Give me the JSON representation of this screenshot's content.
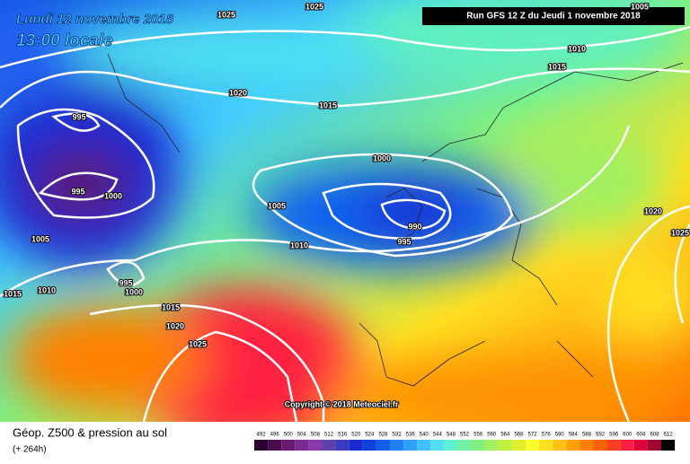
{
  "header": {
    "date": "Lundi 12 novembre 2018",
    "time": "13:00 locale",
    "run": "Run GFS 12 Z du Jeudi 1 novembre 2018"
  },
  "isobars": [
    1025,
    1025,
    1005,
    1010,
    1015,
    1020,
    1015,
    995,
    995,
    1000,
    1000,
    1005,
    990,
    995,
    1010,
    1005,
    1015,
    1010,
    995,
    1000,
    1015,
    1020,
    1025,
    1020,
    1025
  ],
  "copyright": "Copyright © 2018 Meteociel.fr",
  "legend": {
    "title": "Géop. Z500 & pression au sol",
    "lead": "(+ 264h)",
    "scale": [
      {
        "value": 492,
        "color": "#2a0030"
      },
      {
        "value": 496,
        "color": "#4a0a50"
      },
      {
        "value": 500,
        "color": "#6a1a70"
      },
      {
        "value": 504,
        "color": "#7a2a90"
      },
      {
        "value": 508,
        "color": "#8a3aa8"
      },
      {
        "value": 512,
        "color": "#6040b0"
      },
      {
        "value": 516,
        "color": "#3a3ac0"
      },
      {
        "value": 520,
        "color": "#1a2ad0"
      },
      {
        "value": 524,
        "color": "#1040e0"
      },
      {
        "value": 528,
        "color": "#1060f0"
      },
      {
        "value": 532,
        "color": "#2080ff"
      },
      {
        "value": 536,
        "color": "#30a0ff"
      },
      {
        "value": 540,
        "color": "#40c0ff"
      },
      {
        "value": 544,
        "color": "#50e0f0"
      },
      {
        "value": 548,
        "color": "#60f0d0"
      },
      {
        "value": 552,
        "color": "#70f0a0"
      },
      {
        "value": 556,
        "color": "#80f080"
      },
      {
        "value": 560,
        "color": "#a0f060"
      },
      {
        "value": 564,
        "color": "#c0f040"
      },
      {
        "value": 568,
        "color": "#e0f030"
      },
      {
        "value": 572,
        "color": "#ffff30"
      },
      {
        "value": 576,
        "color": "#ffe020"
      },
      {
        "value": 580,
        "color": "#ffc010"
      },
      {
        "value": 584,
        "color": "#ffa000"
      },
      {
        "value": 588,
        "color": "#ff8000"
      },
      {
        "value": 592,
        "color": "#ff6000"
      },
      {
        "value": 596,
        "color": "#ff4020"
      },
      {
        "value": 600,
        "color": "#ff2040"
      },
      {
        "value": 604,
        "color": "#e00040"
      },
      {
        "value": 608,
        "color": "#a00030"
      },
      {
        "value": 612,
        "color": "#000000"
      }
    ]
  }
}
